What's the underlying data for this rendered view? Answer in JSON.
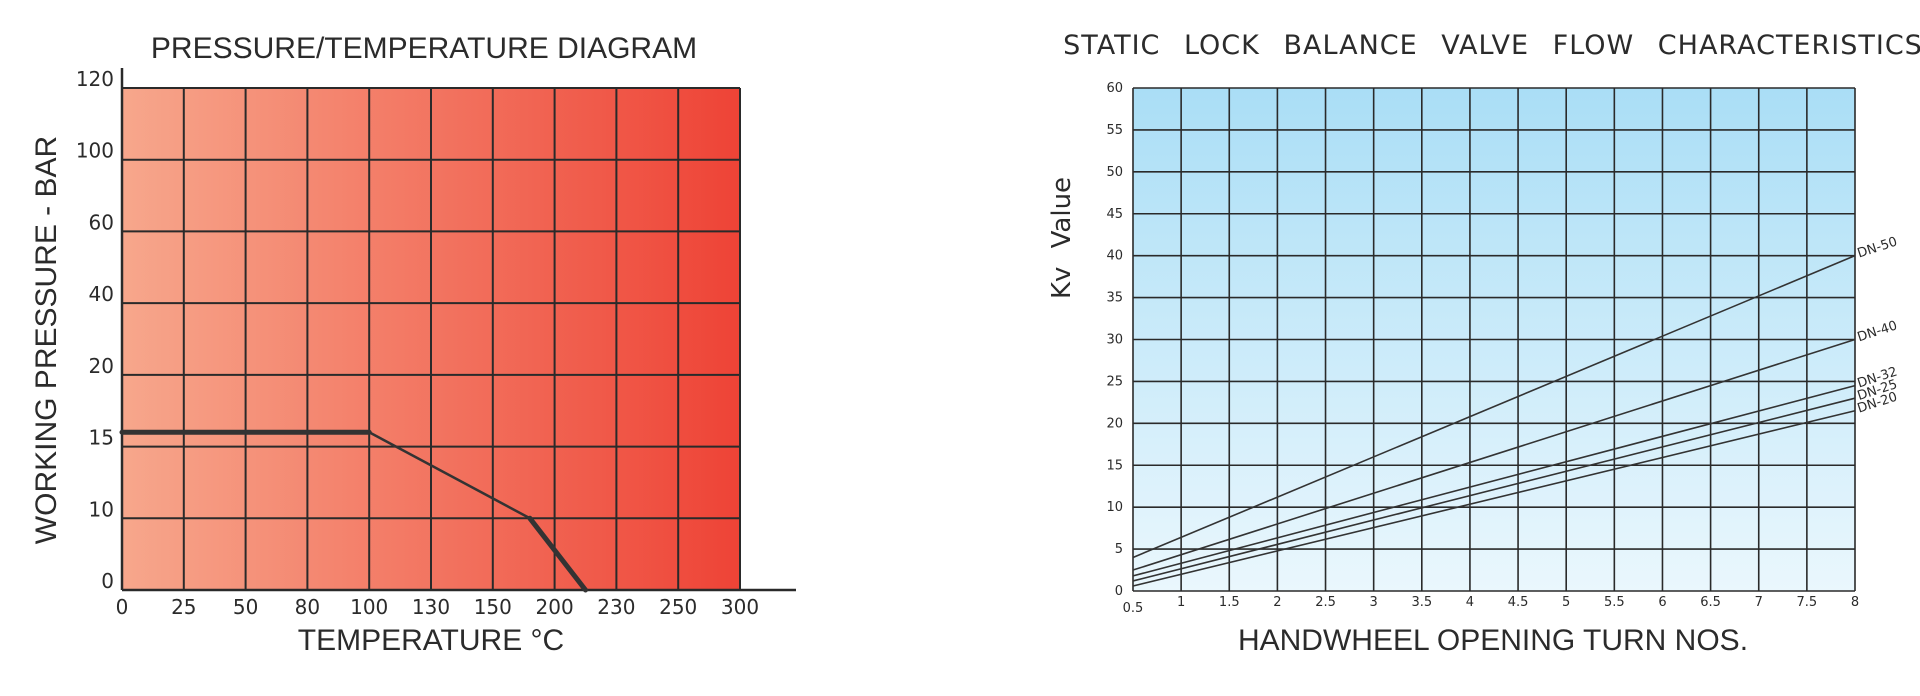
{
  "chart_data": [
    {
      "type": "line",
      "title": "PRESSURE/TEMPERATURE DIAGRAM",
      "xlabel": "TEMPERATURE °C",
      "ylabel": "WORKING PRESSURE - BAR",
      "x_ticks": [
        "0",
        "25",
        "50",
        "80",
        "100",
        "130",
        "150",
        "200",
        "230",
        "250",
        "300"
      ],
      "y_ticks": [
        "0",
        "10",
        "15",
        "20",
        "40",
        "60",
        "100",
        "120"
      ],
      "grid": true,
      "background": {
        "from": "#f7a78c",
        "to": "#ee4336"
      },
      "series": [
        {
          "points": [
            {
              "x": "0",
              "y": "16"
            },
            {
              "x": "100",
              "y": "16"
            },
            {
              "x": "180",
              "y": "10"
            },
            {
              "x": "215",
              "y": "0"
            }
          ]
        }
      ]
    },
    {
      "type": "line",
      "title": "STATIC LOCK BALANCE VALVE FLOW CHARACTERISTICS",
      "xlabel": "HANDWHEEL OPENING TURN NOS.",
      "ylabel": "Kv Value",
      "xlim": [
        0.5,
        8
      ],
      "ylim": [
        0,
        60
      ],
      "x_ticks": [
        "0.5",
        "1",
        "1.5",
        "2",
        "2.5",
        "3",
        "3.5",
        "4",
        "4.5",
        "5",
        "5.5",
        "6",
        "6.5",
        "7",
        "7.5",
        "8"
      ],
      "y_ticks": [
        "0",
        "5",
        "10",
        "15",
        "20",
        "25",
        "30",
        "35",
        "40",
        "45",
        "50",
        "55",
        "60"
      ],
      "grid": true,
      "background": {
        "from": "#aadef6",
        "to": "#eaf7fd"
      },
      "series": [
        {
          "name": "DN-50",
          "x": [
            0.5,
            8
          ],
          "values": [
            4,
            40
          ]
        },
        {
          "name": "DN-40",
          "x": [
            0.5,
            8
          ],
          "values": [
            2.5,
            30
          ]
        },
        {
          "name": "DN-32",
          "x": [
            0.5,
            8
          ],
          "values": [
            1.8,
            24.5
          ]
        },
        {
          "name": "DN-25",
          "x": [
            0.5,
            8
          ],
          "values": [
            1.2,
            23
          ]
        },
        {
          "name": "DN-20",
          "x": [
            0.5,
            8
          ],
          "values": [
            0.6,
            21.5
          ]
        }
      ]
    }
  ],
  "colors": {
    "grid": "#2a2a2a",
    "text": "#2b2b2b",
    "curve": "#333333"
  }
}
